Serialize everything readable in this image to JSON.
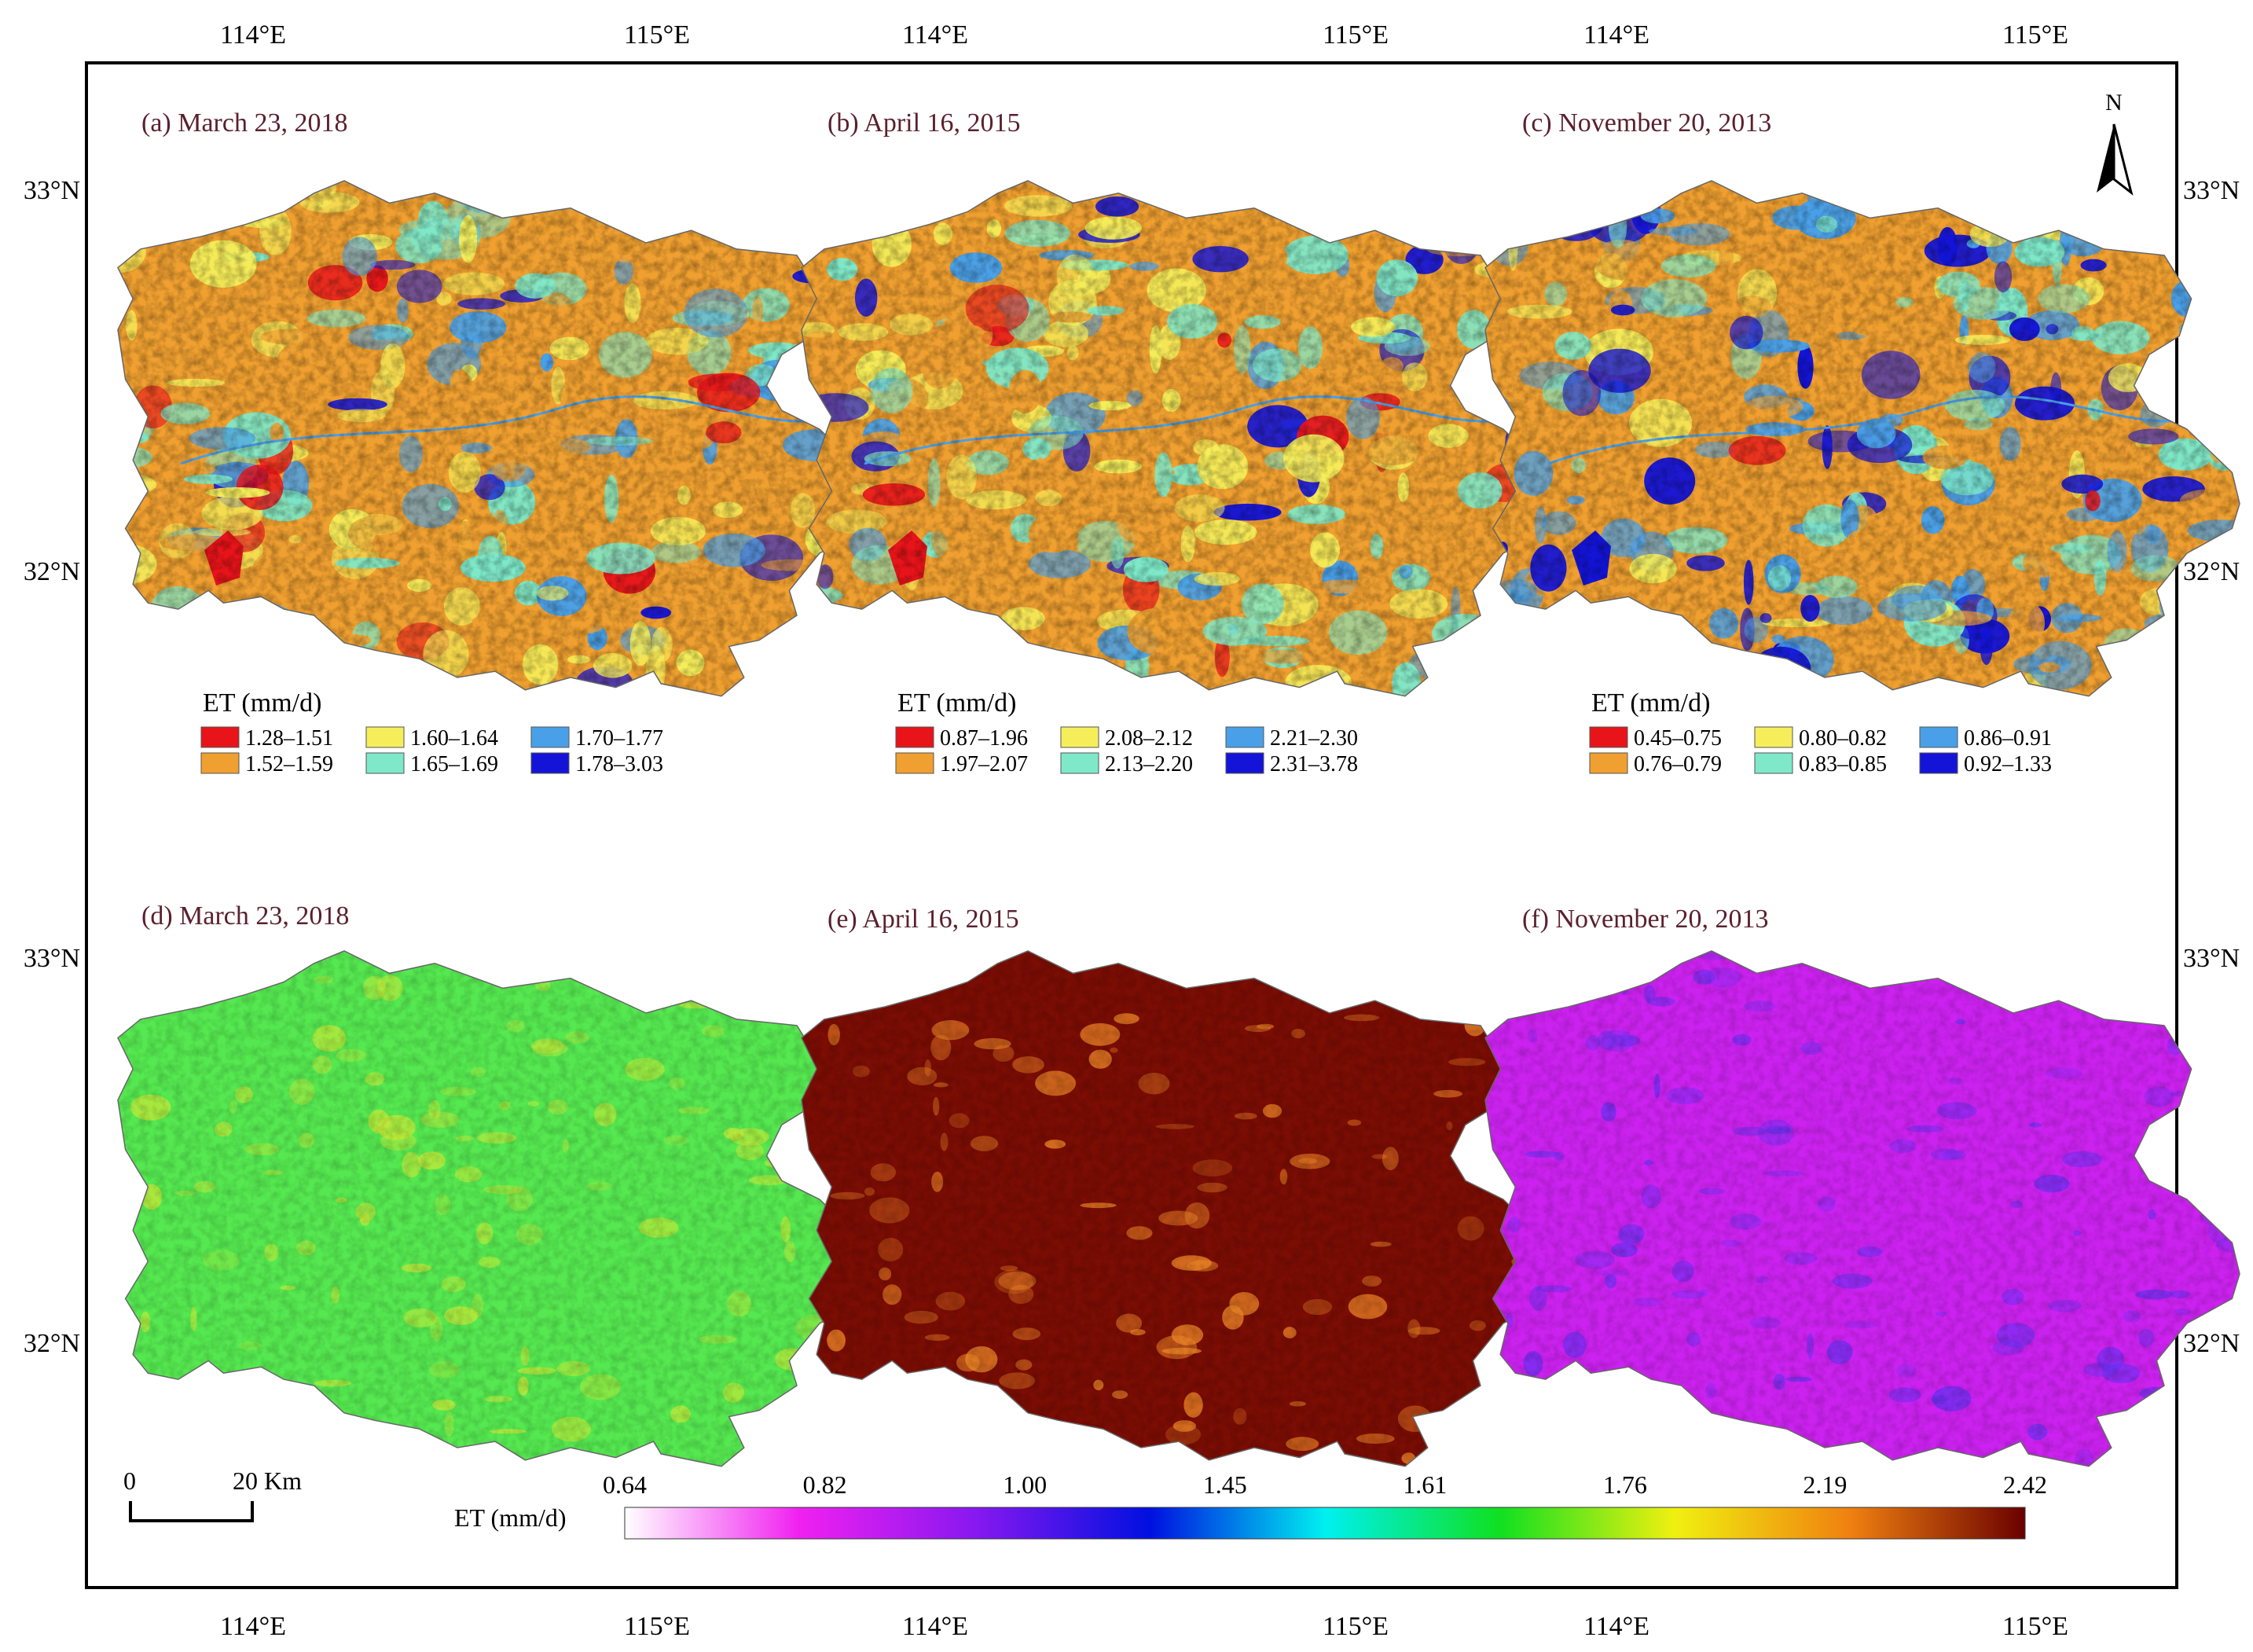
{
  "axes": {
    "lon_labels": [
      "114°E",
      "115°E"
    ],
    "lat_labels": [
      "33°N",
      "32°N"
    ]
  },
  "north_arrow": {
    "label": "N",
    "icon": "north-arrow-icon"
  },
  "scale_bar": {
    "start_label": "0",
    "end_label": "20 Km"
  },
  "panels": [
    {
      "id": "a",
      "title": "(a) March 23, 2018",
      "style": "classified",
      "legend": {
        "title": "ET (mm/d)",
        "classes": [
          {
            "label": "1.28–1.51",
            "color": "#e8141a"
          },
          {
            "label": "1.52–1.59",
            "color": "#f0a030"
          },
          {
            "label": "1.60–1.64",
            "color": "#f5ee5a"
          },
          {
            "label": "1.65–1.69",
            "color": "#7ee8c8"
          },
          {
            "label": "1.70–1.77",
            "color": "#4aa0e8"
          },
          {
            "label": "1.78–3.03",
            "color": "#1414d8"
          }
        ]
      }
    },
    {
      "id": "b",
      "title": "(b) April 16, 2015",
      "style": "classified",
      "legend": {
        "title": "ET (mm/d)",
        "classes": [
          {
            "label": "0.87–1.96",
            "color": "#e8141a"
          },
          {
            "label": "1.97–2.07",
            "color": "#f0a030"
          },
          {
            "label": "2.08–2.12",
            "color": "#f5ee5a"
          },
          {
            "label": "2.13–2.20",
            "color": "#7ee8c8"
          },
          {
            "label": "2.21–2.30",
            "color": "#4aa0e8"
          },
          {
            "label": "2.31–3.78",
            "color": "#1414d8"
          }
        ]
      }
    },
    {
      "id": "c",
      "title": "(c) November 20, 2013",
      "style": "classified",
      "legend": {
        "title": "ET (mm/d)",
        "classes": [
          {
            "label": "0.45–0.75",
            "color": "#e8141a"
          },
          {
            "label": "0.76–0.79",
            "color": "#f0a030"
          },
          {
            "label": "0.80–0.82",
            "color": "#f5ee5a"
          },
          {
            "label": "0.83–0.85",
            "color": "#7ee8c8"
          },
          {
            "label": "0.86–0.91",
            "color": "#4aa0e8"
          },
          {
            "label": "0.92–1.33",
            "color": "#1414d8"
          }
        ]
      }
    },
    {
      "id": "d",
      "title": "(d) March 23, 2018",
      "style": "continuous",
      "fill": "#55e850",
      "accent": "#c8e838"
    },
    {
      "id": "e",
      "title": "(e) April 16, 2015",
      "style": "continuous",
      "fill": "#7a0d04",
      "accent": "#f08a28"
    },
    {
      "id": "f",
      "title": "(f) November 20, 2013",
      "style": "continuous",
      "fill": "#cc22f0",
      "accent": "#6a30f0"
    }
  ],
  "colorbar": {
    "label": "ET  (mm/d)",
    "ticks": [
      "0.64",
      "0.82",
      "1.00",
      "1.45",
      "1.61",
      "1.76",
      "2.19",
      "2.42"
    ],
    "stops": [
      "#ffffff",
      "#f020f0",
      "#8818f0",
      "#0010e0",
      "#00f0f0",
      "#10e020",
      "#f0f010",
      "#f08010",
      "#6a0000"
    ]
  },
  "colors": {
    "title": "#5a2030",
    "frame": "#000000"
  }
}
